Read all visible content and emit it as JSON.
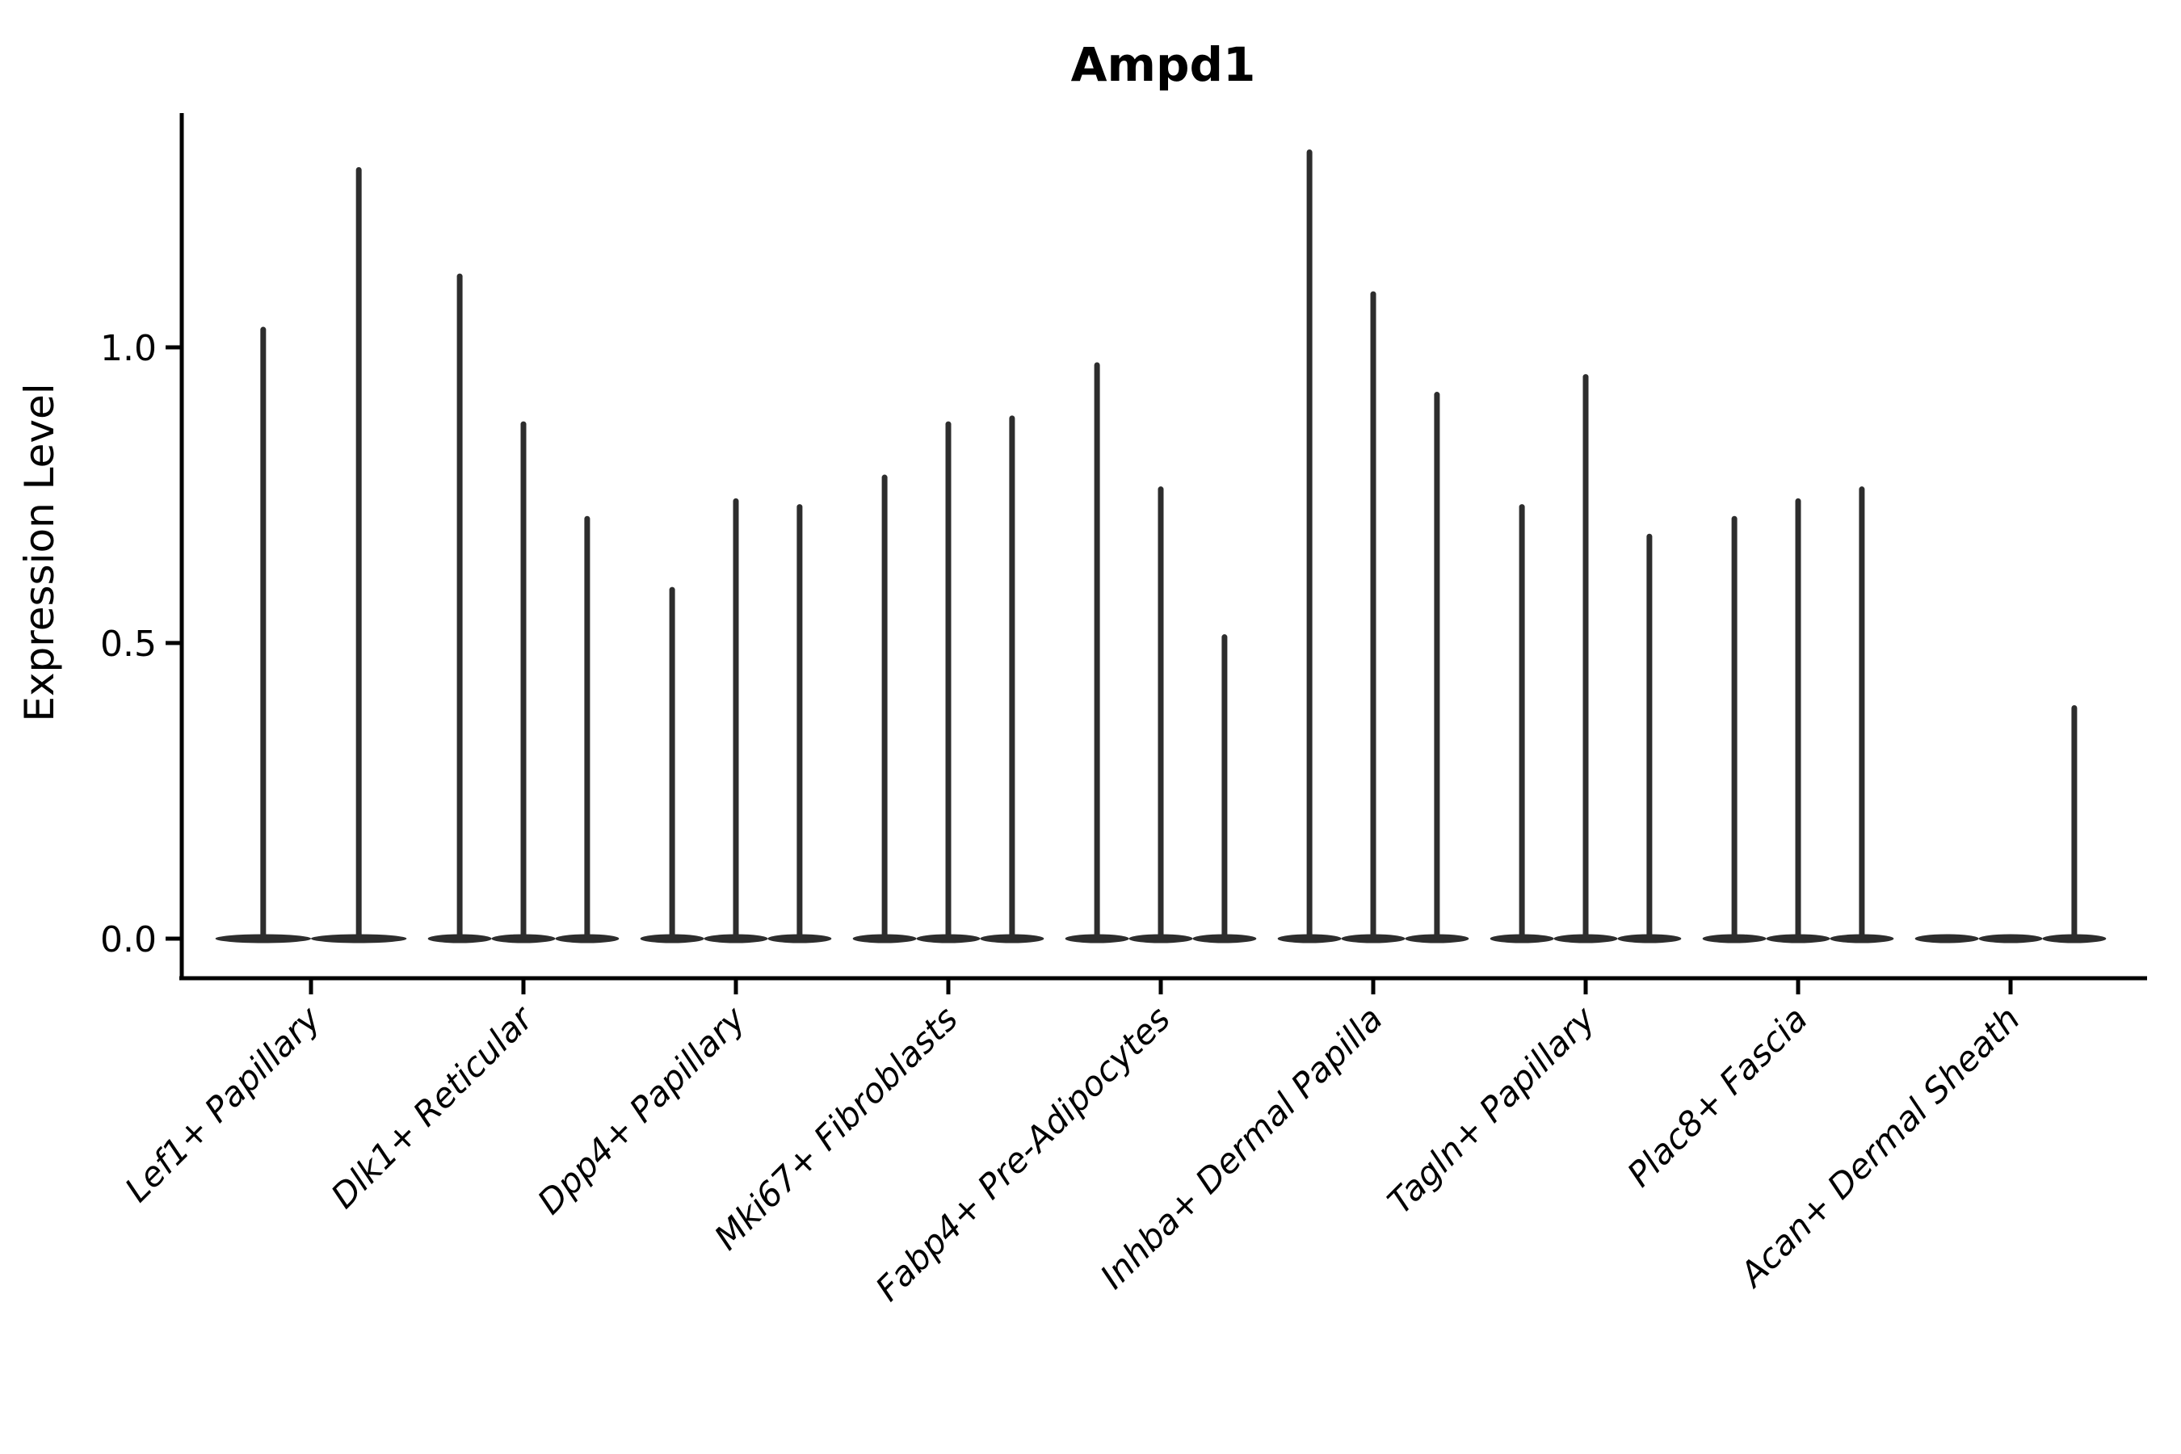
{
  "figure": {
    "background": "#ffffff",
    "spine_color": "#000000",
    "text_color": "#000000"
  },
  "chart_data": {
    "type": "violin",
    "title": "Ampd1",
    "xlabel": "",
    "ylabel": "Expression Level",
    "grid": false,
    "legend": "none",
    "ylim": [
      0,
      1.4
    ],
    "ytick_values": [
      0.0,
      0.5,
      1.0
    ],
    "ytick_labels": [
      "0.0",
      "0.5",
      "1.0"
    ],
    "violin_color": "#2d2d2d",
    "categories": [
      "Lef1+ Papillary",
      "Dlk1+ Reticular",
      "Dpp4+ Papillary",
      "Mki67+ Fibroblasts",
      "Fabp4+ Pre-Adipocytes",
      "Inhba+ Dermal Papilla",
      "Tagln+ Papillary",
      "Plac8+ Fascia",
      "Acan+ Dermal Sheath"
    ],
    "series": [
      {
        "category": "Lef1+ Papillary",
        "violins": [
          {
            "offset": -0.225,
            "width": 0.45,
            "peak": 1.03
          },
          {
            "offset": 0.225,
            "width": 0.45,
            "peak": 1.3
          }
        ]
      },
      {
        "category": "Dlk1+ Reticular",
        "violins": [
          {
            "offset": -0.3,
            "width": 0.3,
            "peak": 1.12
          },
          {
            "offset": 0.0,
            "width": 0.3,
            "peak": 0.87
          },
          {
            "offset": 0.3,
            "width": 0.3,
            "peak": 0.71
          }
        ]
      },
      {
        "category": "Dpp4+ Papillary",
        "violins": [
          {
            "offset": -0.3,
            "width": 0.3,
            "peak": 0.59
          },
          {
            "offset": 0.0,
            "width": 0.3,
            "peak": 0.74
          },
          {
            "offset": 0.3,
            "width": 0.3,
            "peak": 0.73
          }
        ]
      },
      {
        "category": "Mki67+ Fibroblasts",
        "violins": [
          {
            "offset": -0.3,
            "width": 0.3,
            "peak": 0.78
          },
          {
            "offset": 0.0,
            "width": 0.3,
            "peak": 0.87
          },
          {
            "offset": 0.3,
            "width": 0.3,
            "peak": 0.88
          }
        ]
      },
      {
        "category": "Fabp4+ Pre-Adipocytes",
        "violins": [
          {
            "offset": -0.3,
            "width": 0.3,
            "peak": 0.97
          },
          {
            "offset": 0.0,
            "width": 0.3,
            "peak": 0.76
          },
          {
            "offset": 0.3,
            "width": 0.3,
            "peak": 0.51
          }
        ]
      },
      {
        "category": "Inhba+ Dermal Papilla",
        "violins": [
          {
            "offset": -0.3,
            "width": 0.3,
            "peak": 1.33
          },
          {
            "offset": 0.0,
            "width": 0.3,
            "peak": 1.09
          },
          {
            "offset": 0.3,
            "width": 0.3,
            "peak": 0.92
          }
        ]
      },
      {
        "category": "Tagln+ Papillary",
        "violins": [
          {
            "offset": -0.3,
            "width": 0.3,
            "peak": 0.73
          },
          {
            "offset": 0.0,
            "width": 0.3,
            "peak": 0.95
          },
          {
            "offset": 0.3,
            "width": 0.3,
            "peak": 0.68
          }
        ]
      },
      {
        "category": "Plac8+ Fascia",
        "violins": [
          {
            "offset": -0.3,
            "width": 0.3,
            "peak": 0.71
          },
          {
            "offset": 0.0,
            "width": 0.3,
            "peak": 0.74
          },
          {
            "offset": 0.3,
            "width": 0.3,
            "peak": 0.76
          }
        ]
      },
      {
        "category": "Acan+ Dermal Sheath",
        "violins": [
          {
            "offset": -0.3,
            "width": 0.3,
            "peak": 0.0
          },
          {
            "offset": 0.0,
            "width": 0.3,
            "peak": 0.0
          },
          {
            "offset": 0.3,
            "width": 0.3,
            "peak": 0.39
          }
        ]
      }
    ]
  }
}
